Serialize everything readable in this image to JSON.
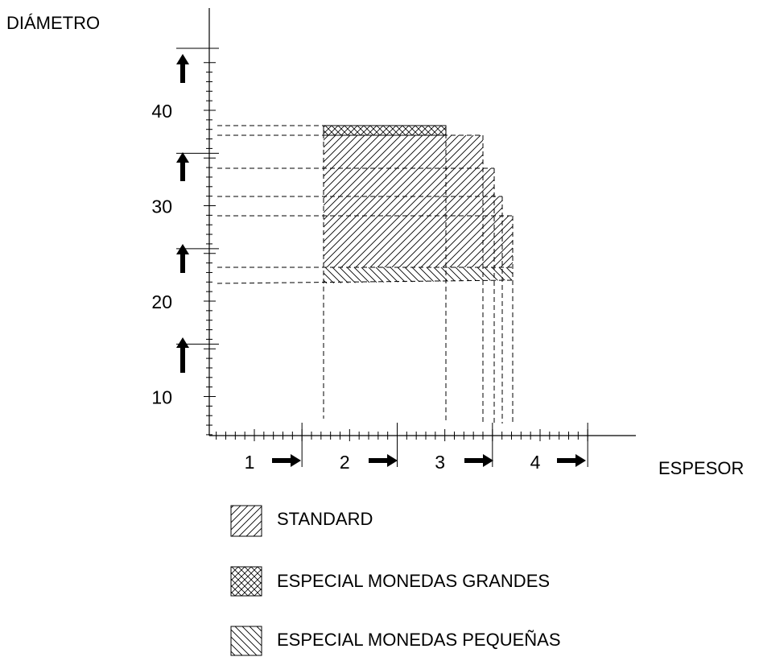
{
  "diagram": {
    "y_axis_title": "DIÁMETRO",
    "x_axis_title": "ESPESOR",
    "y_tick_labels": [
      {
        "value": 10,
        "label": "10"
      },
      {
        "value": 20,
        "label": "20"
      },
      {
        "value": 30,
        "label": "30"
      },
      {
        "value": 40,
        "label": "40"
      }
    ],
    "x_tick_labels": [
      {
        "value": 1,
        "label": "1"
      },
      {
        "value": 2,
        "label": "2"
      },
      {
        "value": 3,
        "label": "3"
      },
      {
        "value": 4,
        "label": "4"
      }
    ],
    "regions": {
      "standard": {
        "thickness": [
          2.0,
          3.3
        ],
        "diameter": [
          22.5,
          35.5
        ]
      },
      "especial_monedas_grandes": {
        "thickness": [
          2.0,
          3.3
        ],
        "diameter": [
          35.5,
          36.5
        ]
      },
      "especial_monedas_pequenas": {
        "thickness": [
          2.0,
          3.3
        ],
        "diameter": [
          21.0,
          22.5
        ]
      }
    },
    "legend": [
      {
        "key": "standard",
        "label": "STANDARD",
        "pattern": "diagonal-hatch"
      },
      {
        "key": "especial_monedas_grandes",
        "label": "ESPECIAL MONEDAS GRANDES",
        "pattern": "cross-hatch"
      },
      {
        "key": "especial_monedas_pequenas",
        "label": "ESPECIAL MONEDAS PEQUEÑAS",
        "pattern": "back-diagonal-hatch"
      }
    ],
    "colors": {
      "ink": "#000000",
      "background": "#ffffff"
    }
  }
}
